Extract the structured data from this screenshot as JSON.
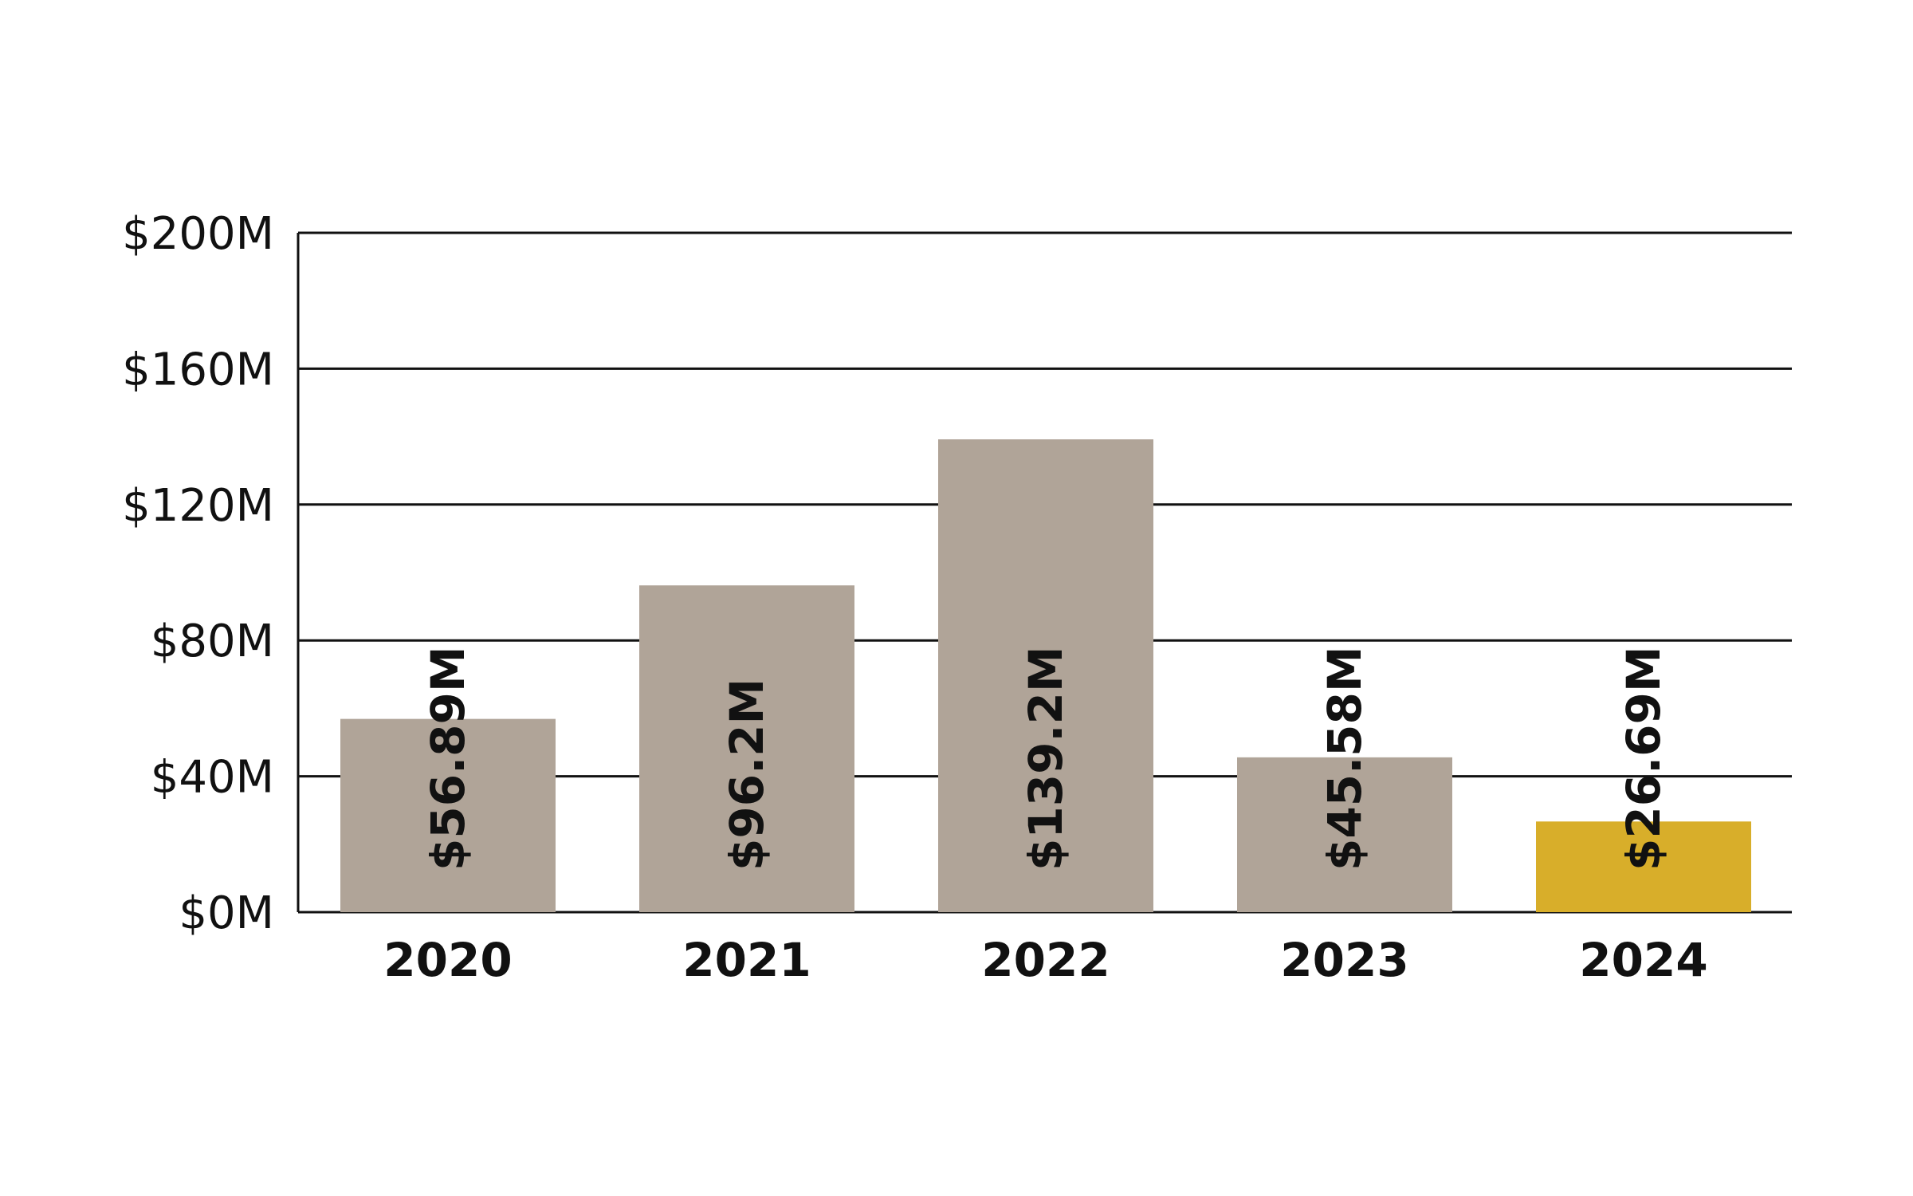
{
  "chart_data": {
    "type": "bar",
    "categories": [
      "2020",
      "2021",
      "2022",
      "2023",
      "2024"
    ],
    "values": [
      56.89,
      96.2,
      139.2,
      45.58,
      26.69
    ],
    "value_labels": [
      "$56.89M",
      "$96.2M",
      "$139.2M",
      "$45.58M",
      "$26.69M"
    ],
    "unit": "$M",
    "ylim": [
      0,
      200
    ],
    "yticks": [
      0,
      40,
      80,
      120,
      160,
      200
    ],
    "ytick_labels": [
      "$0M",
      "$40M",
      "$80M",
      "$120M",
      "$160M",
      "$200M"
    ],
    "grid": true,
    "colors": {
      "default_bar": "#b0a498",
      "highlight_bar": "#d8ae2a",
      "gridline": "#111111",
      "text": "#111111"
    },
    "highlight_index": 4
  }
}
